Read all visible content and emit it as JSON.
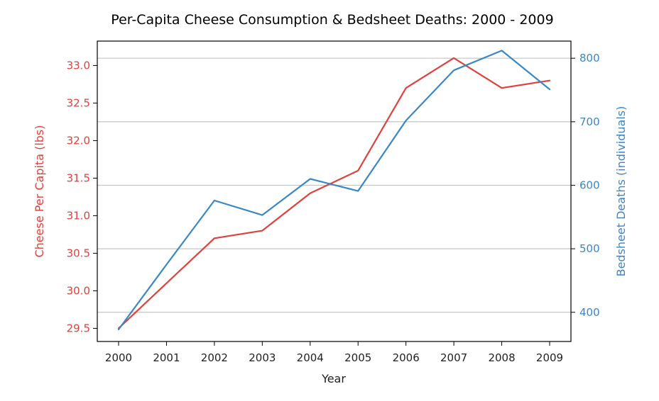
{
  "chart_data": {
    "type": "line",
    "title": "Per-Capita Cheese Consumption & Bedsheet Deaths: 2000 - 2009",
    "xlabel": "Year",
    "categories": [
      "2000",
      "2001",
      "2002",
      "2003",
      "2004",
      "2005",
      "2006",
      "2007",
      "2008",
      "2009"
    ],
    "series": [
      {
        "name": "Cheese Per Capita (lbs)",
        "axis": "left",
        "color": "#e0413c",
        "values": [
          29.5,
          30.1,
          30.7,
          30.8,
          31.3,
          31.6,
          32.7,
          33.1,
          32.7,
          32.8
        ]
      },
      {
        "name": "Bedsheet Deaths (individuals)",
        "axis": "right",
        "color": "#3a87c5",
        "values": [
          373,
          475,
          576,
          553,
          610,
          591,
          702,
          781,
          812,
          751
        ]
      }
    ],
    "left_axis": {
      "label": "Cheese Per Capita (lbs)",
      "color": "#e0413c",
      "ylim": [
        29.325,
        33.325
      ],
      "ticks": [
        "29.5",
        "30.0",
        "30.5",
        "31.0",
        "31.5",
        "32.0",
        "32.5",
        "33.0"
      ]
    },
    "right_axis": {
      "label": "Bedsheet Deaths (individuals)",
      "color": "#3a87c5",
      "ylim": [
        354,
        827
      ],
      "ticks": [
        "400",
        "500",
        "600",
        "700",
        "800"
      ]
    },
    "grid": "horizontal-right-axis"
  }
}
